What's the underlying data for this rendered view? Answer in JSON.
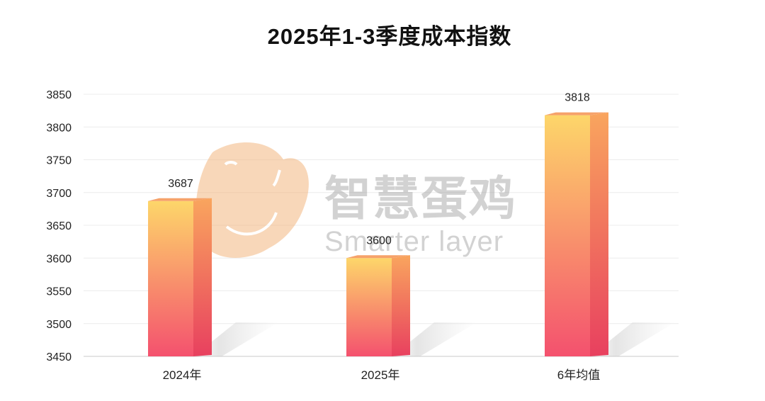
{
  "chart_data": {
    "type": "bar",
    "title": "2025年1-3季度成本指数",
    "categories": [
      "2024年",
      "2025年",
      "6年均值"
    ],
    "values": [
      3687,
      3600,
      3818
    ],
    "data_labels": [
      "3687",
      "3600",
      "3818"
    ],
    "ylim": [
      3450,
      3850
    ],
    "yticks": [
      3450,
      3500,
      3550,
      3600,
      3650,
      3700,
      3750,
      3800,
      3850
    ],
    "xlabel": "",
    "ylabel": "",
    "grid": true,
    "legend": "none",
    "bar_gradient_top": "#FDD66A",
    "bar_gradient_bottom": "#F4516E"
  },
  "watermark": {
    "cn": "智慧蛋鸡",
    "en": "Smarter layer",
    "logo_color": "#F3B780"
  }
}
